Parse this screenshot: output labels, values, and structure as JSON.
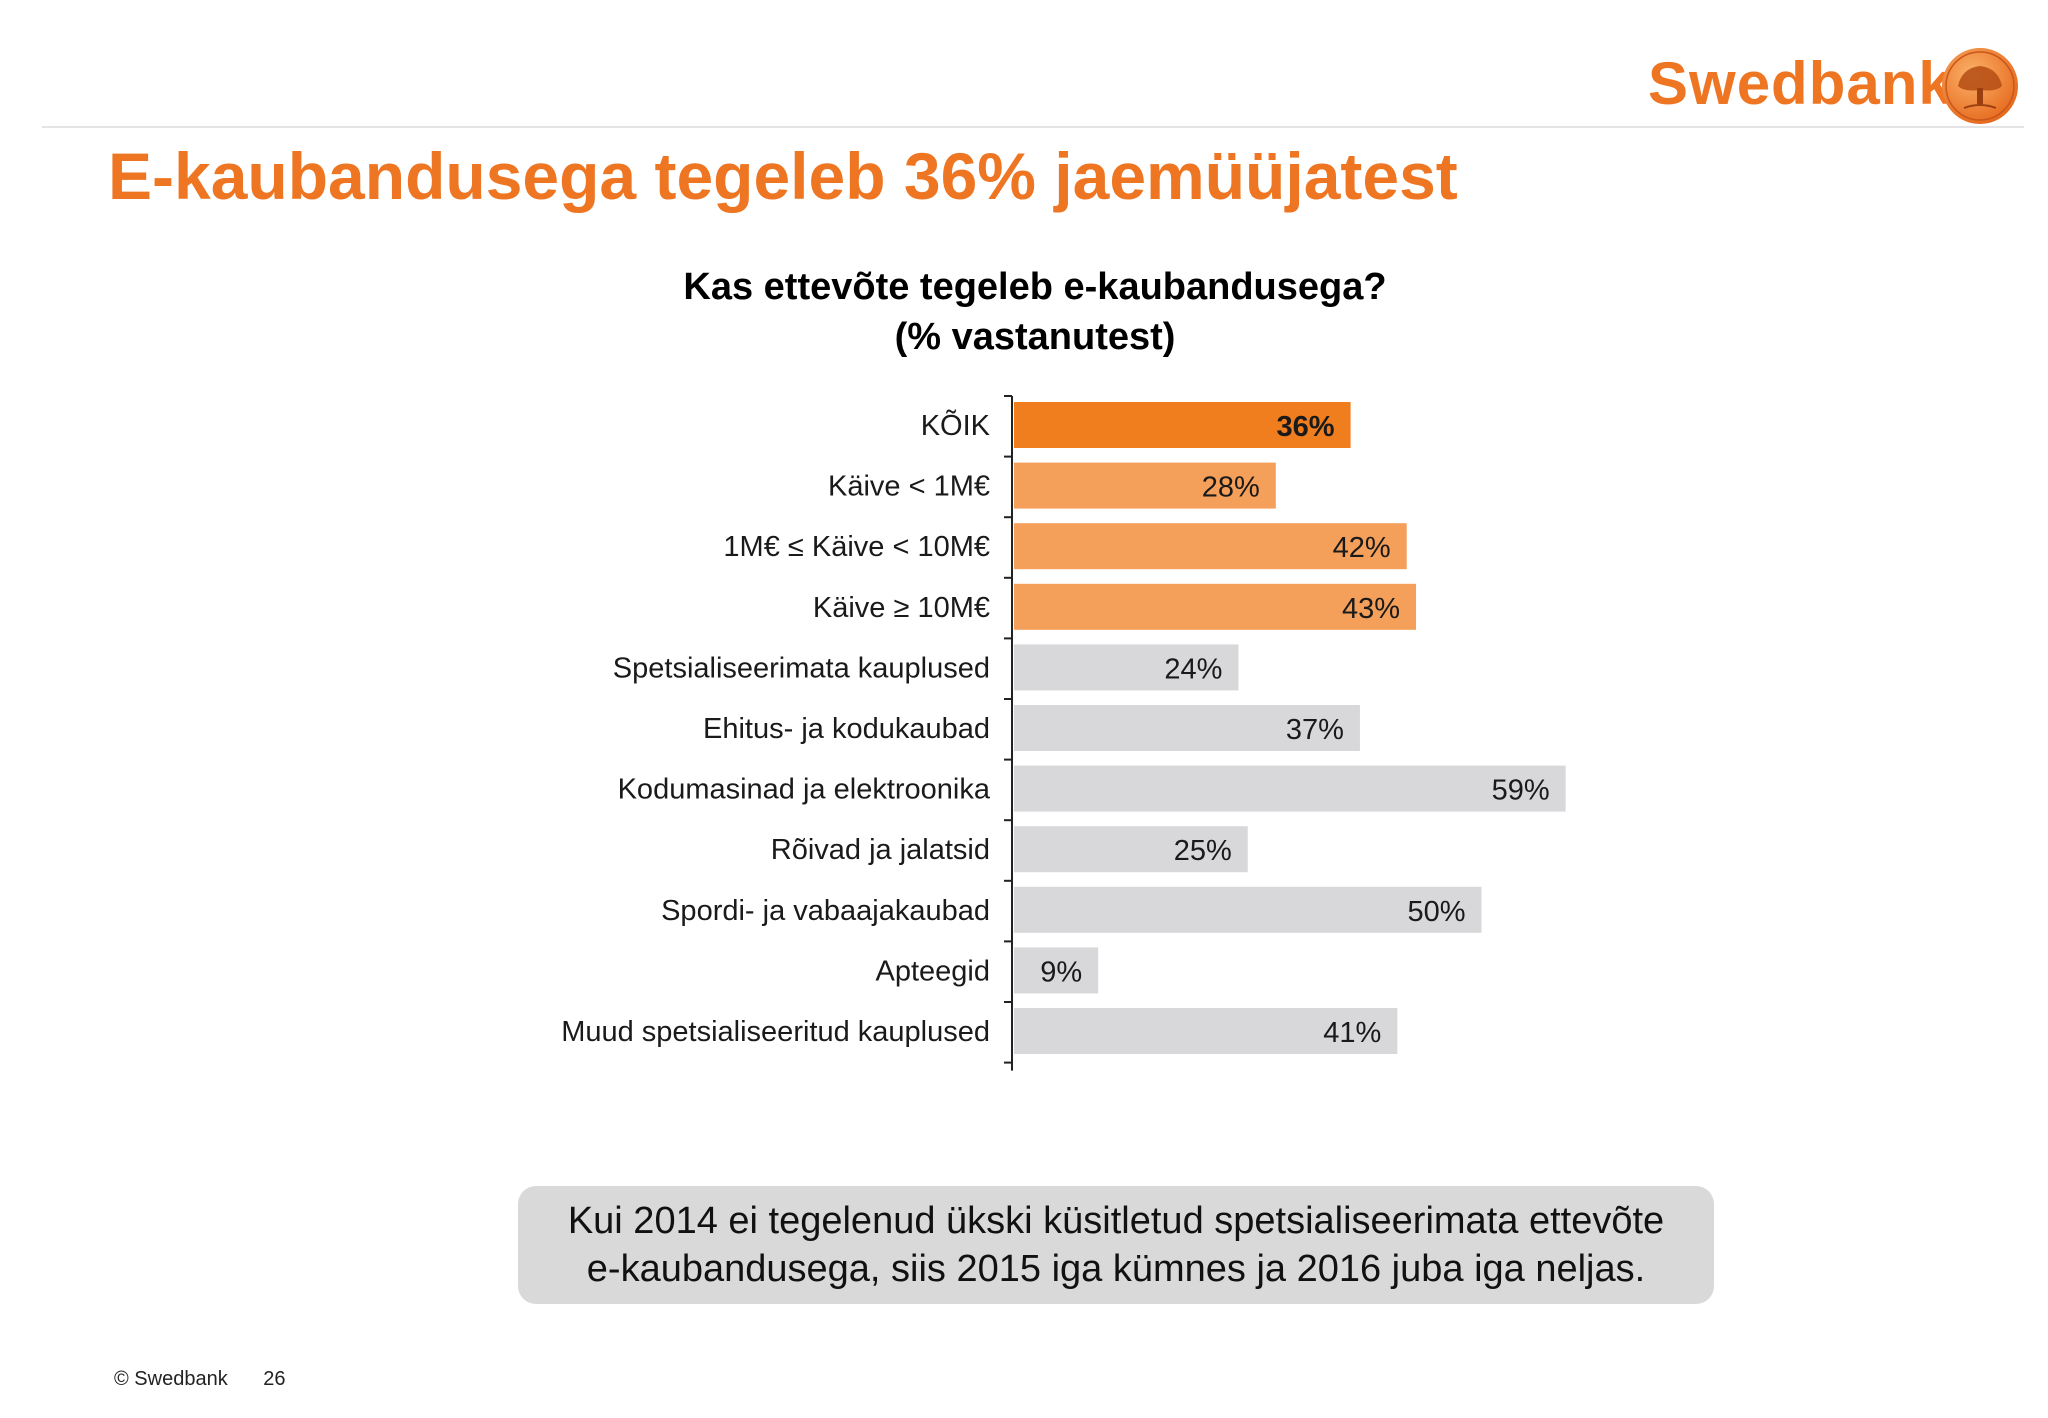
{
  "brand": {
    "name": "Swedbank",
    "accent_color": "#ee7623"
  },
  "slide_title": "E-kaubandusega tegeleb 36% jaemüüjatest",
  "chart_data": {
    "type": "bar",
    "orientation": "horizontal",
    "title": "Kas ettevõte tegeleb e-kaubandusega?",
    "subtitle": "(% vastanutest)",
    "xlim": [
      0,
      100
    ],
    "grid": false,
    "categories": [
      "KÕIK",
      "Käive < 1M€",
      "1M€ ≤ Käive < 10M€",
      "Käive ≥ 10M€",
      "Spetsialiseerimata kauplused",
      "Ehitus- ja kodukaubad",
      "Kodumasinad ja elektroonika",
      "Rõivad ja jalatsid",
      "Spordi- ja vabaajakaubad",
      "Apteegid",
      "Muud spetsialiseeritud kauplused"
    ],
    "values": [
      36,
      28,
      42,
      43,
      24,
      37,
      59,
      25,
      50,
      9,
      41
    ],
    "value_labels": [
      "36%",
      "28%",
      "42%",
      "43%",
      "24%",
      "37%",
      "59%",
      "25%",
      "50%",
      "9%",
      "41%"
    ],
    "colors": [
      "#f07d1e",
      "#f5a05a",
      "#f5a05a",
      "#f5a05a",
      "#d8d7da",
      "#d8d7da",
      "#d8d7da",
      "#d8d7da",
      "#d8d7da",
      "#d8d7da",
      "#d8d7da"
    ]
  },
  "note": {
    "line1": "Kui 2014 ei tegelenud ükski küsitletud spetsialiseerimata ettevõte",
    "line2": "e-kaubandusega, siis 2015 iga kümnes ja 2016 juba iga neljas."
  },
  "footer": {
    "copyright": "© Swedbank",
    "page_number": "26"
  }
}
